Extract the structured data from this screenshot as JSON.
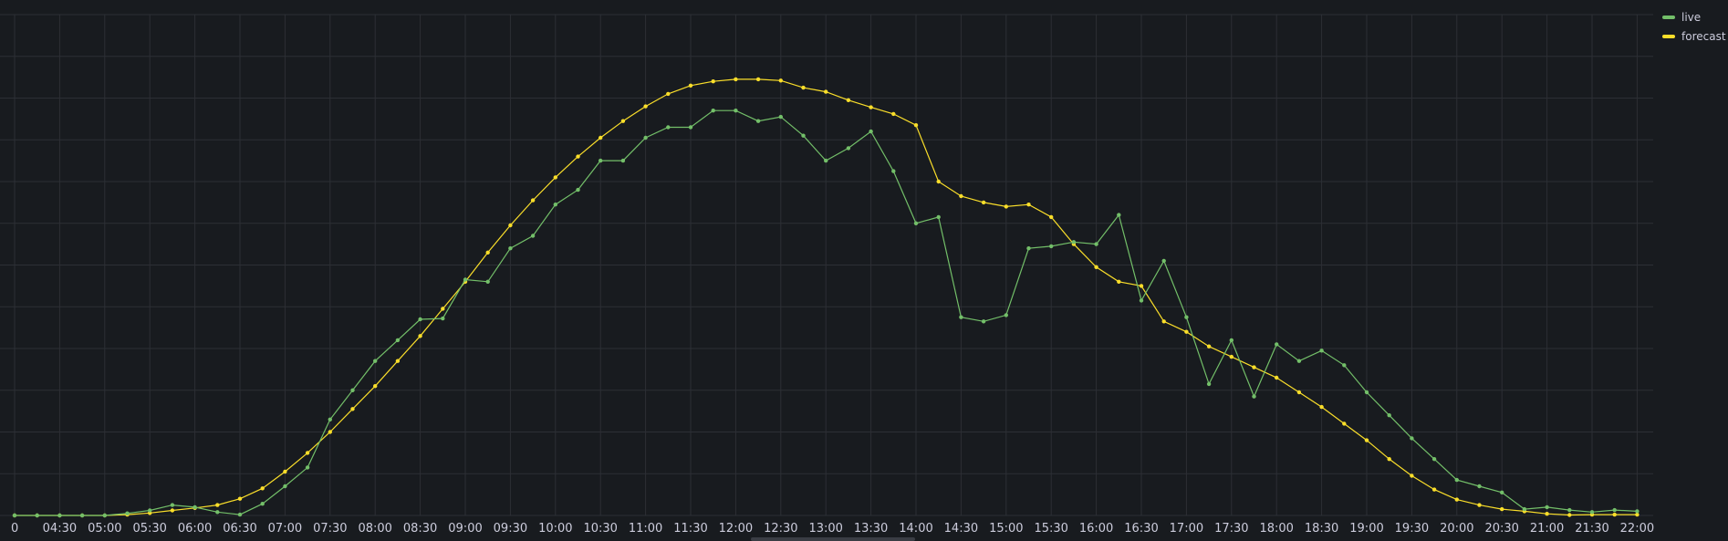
{
  "chart_data": {
    "type": "line",
    "xlabel": "",
    "ylabel": "",
    "grid": true,
    "legend_position": "top-right",
    "x_tick_labels": [
      "0",
      "04:30",
      "05:00",
      "05:30",
      "06:00",
      "06:30",
      "07:00",
      "07:30",
      "08:00",
      "08:30",
      "09:00",
      "09:30",
      "10:00",
      "10:30",
      "11:00",
      "11:30",
      "12:00",
      "12:30",
      "13:00",
      "13:30",
      "14:00",
      "14:30",
      "15:00",
      "15:30",
      "16:00",
      "16:30",
      "17:00",
      "17:30",
      "18:00",
      "18:30",
      "19:00",
      "19:30",
      "20:00",
      "20:30",
      "21:00",
      "21:30",
      "22:00"
    ],
    "x_start_minutes": 240,
    "x_step_minutes": 15,
    "y_range": [
      0,
      12
    ],
    "series": [
      {
        "name": "live",
        "color": "#73bf69",
        "values": [
          0.0,
          0.0,
          0.0,
          0.0,
          0.0,
          0.05,
          0.12,
          0.25,
          0.2,
          0.08,
          0.02,
          0.28,
          0.7,
          1.15,
          2.3,
          3.0,
          3.7,
          4.2,
          4.7,
          4.72,
          5.65,
          5.6,
          6.4,
          6.7,
          7.45,
          7.8,
          8.5,
          8.5,
          9.05,
          9.3,
          9.3,
          9.7,
          9.7,
          9.45,
          9.55,
          9.1,
          8.5,
          8.8,
          9.2,
          8.25,
          7.0,
          7.15,
          4.75,
          4.65,
          4.8,
          6.4,
          6.45,
          6.55,
          6.5,
          7.2,
          5.15,
          6.1,
          4.75,
          3.15,
          4.2,
          2.85,
          4.1,
          3.7,
          3.95,
          3.6,
          2.95,
          2.4,
          1.85,
          1.35,
          0.85,
          0.7,
          0.55,
          0.15,
          0.2,
          0.13,
          0.08,
          0.13,
          0.1
        ]
      },
      {
        "name": "forecast",
        "color": "#fade2a",
        "values": [
          0.0,
          0.0,
          0.0,
          0.0,
          0.0,
          0.02,
          0.06,
          0.12,
          0.18,
          0.25,
          0.4,
          0.65,
          1.05,
          1.5,
          2.0,
          2.55,
          3.1,
          3.7,
          4.3,
          4.95,
          5.6,
          6.3,
          6.95,
          7.55,
          8.1,
          8.6,
          9.05,
          9.45,
          9.8,
          10.1,
          10.3,
          10.4,
          10.45,
          10.45,
          10.42,
          10.25,
          10.15,
          9.95,
          9.78,
          9.62,
          9.35,
          8.0,
          7.65,
          7.5,
          7.4,
          7.45,
          7.15,
          6.5,
          5.95,
          5.6,
          5.5,
          4.65,
          4.4,
          4.05,
          3.8,
          3.55,
          3.3,
          2.95,
          2.6,
          2.2,
          1.8,
          1.35,
          0.95,
          0.62,
          0.38,
          0.25,
          0.15,
          0.1,
          0.04,
          0.01,
          0.02,
          0.02,
          0.02
        ]
      }
    ]
  }
}
